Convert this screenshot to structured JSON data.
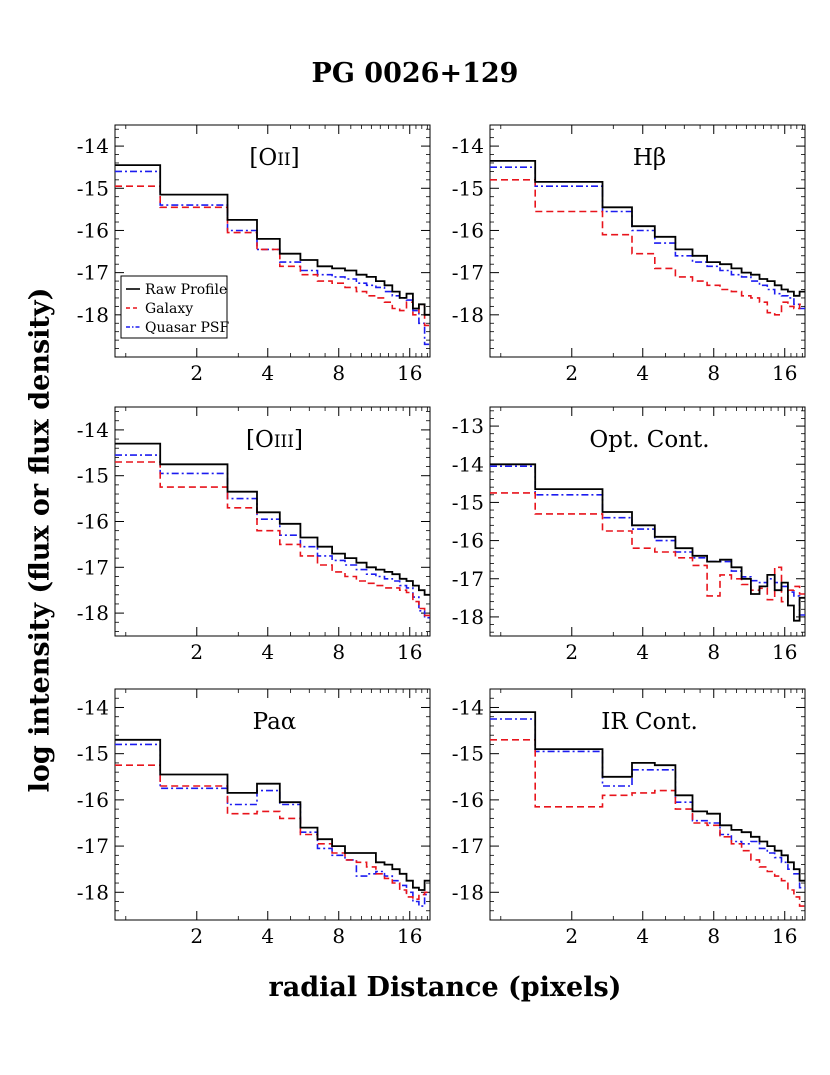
{
  "figure": {
    "title": "PG 0026+129",
    "xlabel": "radial Distance (pixels)",
    "ylabel": "log intensity (flux or flux density)"
  },
  "colors": {
    "raw": "#000000",
    "galaxy": "#e8141c",
    "quasar": "#1c1cf0"
  },
  "legend": {
    "placement": "left-middle of first panel",
    "entries": [
      "Raw Profile",
      "Galaxy",
      "Quasar PSF"
    ]
  },
  "chart_data": [
    {
      "type": "line",
      "title": "[OII]",
      "title_main": "[O",
      "title_small": "II",
      "title_suffix": "]",
      "x_edges": [
        0.9,
        1.4,
        2.7,
        3.6,
        4.5,
        5.5,
        6.5,
        7.5,
        8.5,
        9.5,
        10.5,
        11.5,
        12.5,
        13.5,
        14.5,
        15.5,
        16.5,
        17.5,
        18.5,
        19.5
      ],
      "x_ticks": [
        2,
        4,
        8,
        16
      ],
      "x_tick_labels": [
        "2",
        "4",
        "8",
        "16"
      ],
      "ylim": [
        -19.0,
        -13.5
      ],
      "y_ticks": [
        -14,
        -15,
        -16,
        -17,
        -18
      ],
      "y_tick_labels": [
        "-14",
        "-15",
        "-16",
        "-17",
        "-18"
      ],
      "series": [
        {
          "name": "Raw Profile",
          "style": "solid",
          "values": [
            -14.45,
            -15.15,
            -15.75,
            -16.2,
            -16.55,
            -16.7,
            -16.85,
            -16.9,
            -16.95,
            -17.05,
            -17.1,
            -17.2,
            -17.3,
            -17.45,
            -17.6,
            -17.5,
            -17.85,
            -17.75,
            -18.0
          ]
        },
        {
          "name": "Galaxy",
          "style": "dashed",
          "values": [
            -14.95,
            -15.45,
            -16.05,
            -16.45,
            -16.85,
            -17.05,
            -17.2,
            -17.25,
            -17.35,
            -17.45,
            -17.55,
            -17.6,
            -17.7,
            -17.85,
            -17.9,
            -17.7,
            -18.0,
            -17.75,
            -18.25
          ]
        },
        {
          "name": "Quasar PSF",
          "style": "dashdot",
          "values": [
            -14.6,
            -15.4,
            -16.0,
            -16.45,
            -16.75,
            -16.95,
            -17.05,
            -17.1,
            -17.15,
            -17.25,
            -17.3,
            -17.35,
            -17.45,
            -17.55,
            -17.6,
            -17.65,
            -17.9,
            -18.2,
            -18.7
          ]
        }
      ]
    },
    {
      "type": "line",
      "title": "Hβ",
      "title_main": "Hβ",
      "title_small": "",
      "title_suffix": "",
      "x_edges": [
        0.9,
        1.4,
        2.7,
        3.6,
        4.5,
        5.5,
        6.5,
        7.5,
        8.5,
        9.5,
        10.5,
        11.5,
        12.5,
        13.5,
        14.5,
        15.5,
        16.5,
        17.5,
        18.5,
        19.5
      ],
      "x_ticks": [
        2,
        4,
        8,
        16
      ],
      "x_tick_labels": [
        "2",
        "4",
        "8",
        "16"
      ],
      "ylim": [
        -19.0,
        -13.5
      ],
      "y_ticks": [
        -14,
        -15,
        -16,
        -17,
        -18
      ],
      "y_tick_labels": [
        "-14",
        "-15",
        "-16",
        "-17",
        "-18"
      ],
      "series": [
        {
          "name": "Raw Profile",
          "style": "solid",
          "values": [
            -14.35,
            -14.85,
            -15.45,
            -15.9,
            -16.15,
            -16.45,
            -16.6,
            -16.75,
            -16.8,
            -16.9,
            -17.0,
            -17.05,
            -17.15,
            -17.2,
            -17.3,
            -17.4,
            -17.45,
            -17.55,
            -17.45
          ]
        },
        {
          "name": "Galaxy",
          "style": "dashed",
          "values": [
            -14.8,
            -15.55,
            -16.1,
            -16.55,
            -16.9,
            -17.1,
            -17.2,
            -17.3,
            -17.4,
            -17.45,
            -17.55,
            -17.6,
            -17.7,
            -17.95,
            -18.0,
            -17.7,
            -17.8,
            -17.85,
            -17.75
          ]
        },
        {
          "name": "Quasar PSF",
          "style": "dashdot",
          "values": [
            -14.5,
            -14.95,
            -15.55,
            -16.0,
            -16.3,
            -16.6,
            -16.75,
            -16.85,
            -16.95,
            -17.05,
            -17.1,
            -17.2,
            -17.3,
            -17.4,
            -17.5,
            -17.55,
            -17.6,
            -17.75,
            -17.85
          ]
        }
      ]
    },
    {
      "type": "line",
      "title": "[OIII]",
      "title_main": "[O",
      "title_small": "III",
      "title_suffix": "]",
      "x_edges": [
        0.9,
        1.4,
        2.7,
        3.6,
        4.5,
        5.5,
        6.5,
        7.5,
        8.5,
        9.5,
        10.5,
        11.5,
        12.5,
        13.5,
        14.5,
        15.5,
        16.5,
        17.5,
        18.5,
        19.5
      ],
      "x_ticks": [
        2,
        4,
        8,
        16
      ],
      "x_tick_labels": [
        "2",
        "4",
        "8",
        "16"
      ],
      "ylim": [
        -18.5,
        -13.5
      ],
      "y_ticks": [
        -14,
        -15,
        -16,
        -17,
        -18
      ],
      "y_tick_labels": [
        "-14",
        "-15",
        "-16",
        "-17",
        "-18"
      ],
      "series": [
        {
          "name": "Raw Profile",
          "style": "solid",
          "values": [
            -14.3,
            -14.75,
            -15.35,
            -15.8,
            -16.05,
            -16.35,
            -16.55,
            -16.7,
            -16.8,
            -16.9,
            -17.0,
            -17.05,
            -17.1,
            -17.15,
            -17.25,
            -17.3,
            -17.4,
            -17.5,
            -17.6
          ]
        },
        {
          "name": "Galaxy",
          "style": "dashed",
          "values": [
            -14.7,
            -15.25,
            -15.7,
            -16.2,
            -16.5,
            -16.75,
            -16.95,
            -17.1,
            -17.2,
            -17.3,
            -17.35,
            -17.4,
            -17.45,
            -17.45,
            -17.5,
            -17.55,
            -17.75,
            -17.9,
            -18.05
          ]
        },
        {
          "name": "Quasar PSF",
          "style": "dashdot",
          "values": [
            -14.55,
            -14.95,
            -15.5,
            -15.95,
            -16.3,
            -16.55,
            -16.75,
            -16.85,
            -16.95,
            -17.05,
            -17.15,
            -17.2,
            -17.25,
            -17.3,
            -17.4,
            -17.45,
            -17.65,
            -17.95,
            -18.1
          ]
        }
      ]
    },
    {
      "type": "line",
      "title": "Opt. Cont.",
      "title_main": "Opt. Cont.",
      "title_small": "",
      "title_suffix": "",
      "x_edges": [
        0.9,
        1.4,
        2.7,
        3.6,
        4.5,
        5.5,
        6.5,
        7.5,
        8.5,
        9.5,
        10.5,
        11.5,
        12.5,
        13.5,
        14.5,
        15.5,
        16.5,
        17.5,
        18.5,
        19.5
      ],
      "x_ticks": [
        2,
        4,
        8,
        16
      ],
      "x_tick_labels": [
        "2",
        "4",
        "8",
        "16"
      ],
      "ylim": [
        -18.5,
        -12.5
      ],
      "y_ticks": [
        -13,
        -14,
        -15,
        -16,
        -17,
        -18
      ],
      "y_tick_labels": [
        "-13",
        "-14",
        "-15",
        "-16",
        "-17",
        "-18"
      ],
      "series": [
        {
          "name": "Raw Profile",
          "style": "solid",
          "values": [
            -14.0,
            -14.65,
            -15.25,
            -15.6,
            -15.9,
            -16.2,
            -16.4,
            -16.55,
            -16.5,
            -16.7,
            -17.0,
            -17.4,
            -17.2,
            -16.9,
            -17.3,
            -17.1,
            -17.7,
            -18.1,
            -17.5
          ]
        },
        {
          "name": "Galaxy",
          "style": "dashed",
          "values": [
            -14.75,
            -15.3,
            -15.75,
            -16.2,
            -16.3,
            -16.45,
            -16.65,
            -17.45,
            -16.9,
            -17.0,
            -17.15,
            -17.3,
            -17.25,
            -17.55,
            -16.7,
            -17.6,
            -17.3,
            -17.2,
            -17.4
          ]
        },
        {
          "name": "Quasar PSF",
          "style": "dashdot",
          "values": [
            -14.05,
            -14.8,
            -15.4,
            -15.7,
            -16.0,
            -16.3,
            -16.45,
            -16.55,
            -16.55,
            -16.8,
            -16.95,
            -17.05,
            -17.1,
            -17.0,
            -17.1,
            -17.2,
            -17.35,
            -17.45,
            -17.95
          ]
        }
      ]
    },
    {
      "type": "line",
      "title": "Paα",
      "title_main": "Paα",
      "title_small": "",
      "title_suffix": "",
      "x_edges": [
        0.9,
        1.4,
        2.7,
        3.6,
        4.5,
        5.5,
        6.5,
        7.5,
        8.5,
        9.5,
        10.5,
        11.5,
        12.5,
        13.5,
        14.5,
        15.5,
        16.5,
        17.5,
        18.5,
        19.5
      ],
      "x_ticks": [
        2,
        4,
        8,
        16
      ],
      "x_tick_labels": [
        "2",
        "4",
        "8",
        "16"
      ],
      "ylim": [
        -18.6,
        -13.6
      ],
      "y_ticks": [
        -14,
        -15,
        -16,
        -17,
        -18
      ],
      "y_tick_labels": [
        "-14",
        "-15",
        "-16",
        "-17",
        "-18"
      ],
      "series": [
        {
          "name": "Raw Profile",
          "style": "solid",
          "values": [
            -14.7,
            -15.45,
            -15.85,
            -15.65,
            -16.05,
            -16.6,
            -16.85,
            -17.0,
            -17.15,
            -17.15,
            -17.15,
            -17.35,
            -17.4,
            -17.5,
            -17.6,
            -17.75,
            -17.9,
            -17.95,
            -17.75
          ]
        },
        {
          "name": "Galaxy",
          "style": "dashed",
          "values": [
            -15.25,
            -15.7,
            -16.3,
            -16.25,
            -16.4,
            -16.75,
            -16.95,
            -17.15,
            -17.3,
            -17.35,
            -17.45,
            -17.6,
            -17.7,
            -17.8,
            -17.95,
            -18.1,
            -18.15,
            -18.05,
            -18.0
          ]
        },
        {
          "name": "Quasar PSF",
          "style": "dashdot",
          "values": [
            -14.8,
            -15.75,
            -16.1,
            -15.8,
            -16.1,
            -16.7,
            -17.05,
            -17.2,
            -17.3,
            -17.65,
            -17.6,
            -17.55,
            -17.65,
            -17.75,
            -17.85,
            -18.0,
            -18.2,
            -18.3,
            -18.05
          ]
        }
      ]
    },
    {
      "type": "line",
      "title": "IR Cont.",
      "title_main": "IR Cont.",
      "title_small": "",
      "title_suffix": "",
      "x_edges": [
        0.9,
        1.4,
        2.7,
        3.6,
        4.5,
        5.5,
        6.5,
        7.5,
        8.5,
        9.5,
        10.5,
        11.5,
        12.5,
        13.5,
        14.5,
        15.5,
        16.5,
        17.5,
        18.5,
        19.5
      ],
      "x_ticks": [
        2,
        4,
        8,
        16
      ],
      "x_tick_labels": [
        "2",
        "4",
        "8",
        "16"
      ],
      "ylim": [
        -18.6,
        -13.6
      ],
      "y_ticks": [
        -14,
        -15,
        -16,
        -17,
        -18
      ],
      "y_tick_labels": [
        "-14",
        "-15",
        "-16",
        "-17",
        "-18"
      ],
      "series": [
        {
          "name": "Raw Profile",
          "style": "solid",
          "values": [
            -14.1,
            -14.9,
            -15.5,
            -15.2,
            -15.25,
            -15.9,
            -16.25,
            -16.3,
            -16.55,
            -16.65,
            -16.7,
            -16.8,
            -16.9,
            -17.0,
            -17.1,
            -17.2,
            -17.35,
            -17.5,
            -17.75
          ]
        },
        {
          "name": "Galaxy",
          "style": "dashed",
          "values": [
            -14.7,
            -16.15,
            -15.9,
            -15.85,
            -15.8,
            -16.2,
            -16.5,
            -16.55,
            -16.8,
            -16.95,
            -17.1,
            -17.3,
            -17.45,
            -17.55,
            -17.65,
            -17.75,
            -17.95,
            -18.1,
            -18.3
          ]
        },
        {
          "name": "Quasar PSF",
          "style": "dashdot",
          "values": [
            -14.25,
            -14.95,
            -15.7,
            -15.35,
            -15.35,
            -16.05,
            -16.45,
            -16.5,
            -16.75,
            -16.9,
            -16.95,
            -16.9,
            -17.05,
            -17.15,
            -17.25,
            -17.35,
            -17.5,
            -17.6,
            -17.9
          ]
        }
      ]
    }
  ]
}
